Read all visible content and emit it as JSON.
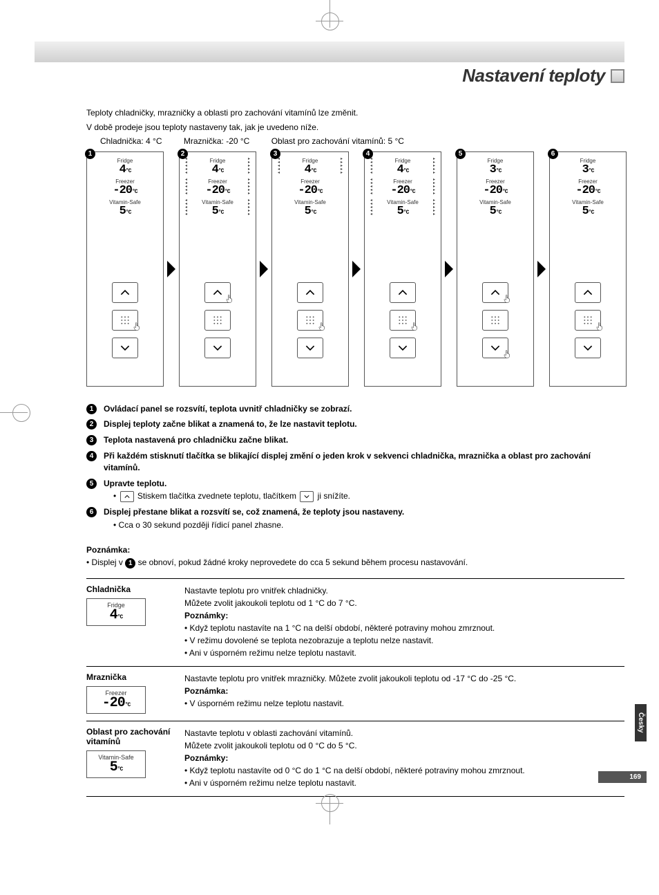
{
  "title": "Nastavení teploty",
  "intro_line1": "Teploty chladničky, mrazničky a oblasti pro zachování vitamínů lze změnit.",
  "intro_line2": "V době prodeje jsou teploty nastaveny tak, jak je uvedeno níže.",
  "defaults": {
    "fridge": "Chladnička: 4 °C",
    "freezer": "Mraznička: -20 °C",
    "vitamin": "Oblast pro zachování vitamínů: 5 °C"
  },
  "panels": [
    {
      "num": "1",
      "fridge": "4",
      "freezer": "-20",
      "vitamin": "5",
      "blinkAll": false,
      "blinkFridge": false,
      "pressUp": false,
      "pressMid": true,
      "pressDown": false
    },
    {
      "num": "2",
      "fridge": "4",
      "freezer": "-20",
      "vitamin": "5",
      "blinkAll": true,
      "blinkFridge": false,
      "pressUp": true,
      "pressMid": false,
      "pressDown": false
    },
    {
      "num": "3",
      "fridge": "4",
      "freezer": "-20",
      "vitamin": "5",
      "blinkAll": false,
      "blinkFridge": true,
      "pressUp": false,
      "pressMid": true,
      "pressDown": false
    },
    {
      "num": "4",
      "fridge": "4",
      "freezer": "-20",
      "vitamin": "5",
      "blinkAll": true,
      "blinkFridge": false,
      "pressUp": false,
      "pressMid": true,
      "pressDown": false
    },
    {
      "num": "5",
      "fridge": "3",
      "freezer": "-20",
      "vitamin": "5",
      "blinkAll": false,
      "blinkFridge": false,
      "pressUp": true,
      "pressMid": false,
      "pressDown": true
    },
    {
      "num": "6",
      "fridge": "3",
      "freezer": "-20",
      "vitamin": "5",
      "blinkAll": false,
      "blinkFridge": false,
      "pressUp": false,
      "pressMid": true,
      "pressDown": false
    }
  ],
  "display_labels": {
    "fridge": "Fridge",
    "freezer": "Freezer",
    "vitamin": "Vitamin-Safe",
    "unit": "°C"
  },
  "steps": [
    {
      "num": "1",
      "text": "Ovládací panel se rozsvítí, teplota uvnitř chladničky se zobrazí."
    },
    {
      "num": "2",
      "text": "Displej teploty začne blikat a znamená to, že lze nastavit teplotu."
    },
    {
      "num": "3",
      "text": "Teplota nastavená pro chladničku začne blikat."
    },
    {
      "num": "4",
      "text": "Při každém stisknutí tlačítka se blikající displej změní o jeden krok v sekvenci chladnička, mraznička a oblast pro zachování vitamínů."
    },
    {
      "num": "5",
      "text": "Upravte teplotu.",
      "sub_before": "Stiskem tlačítka zvednete teplotu, tlačítkem",
      "sub_after": "ji snížíte."
    },
    {
      "num": "6",
      "text": "Displej přestane blikat a rozsvítí se, což znamená, že teploty jsou nastaveny.",
      "sub": "• Cca o 30 sekund později řídicí panel zhasne."
    }
  ],
  "note": {
    "label": "Poznámka:",
    "bullet_prefix": "•  Displej v ",
    "bullet_num": "1",
    "bullet_suffix": " se obnoví, pokud žádné kroky neprovedete do cca 5 sekund během procesu nastavování."
  },
  "settings": [
    {
      "title": "Chladnička",
      "icon_label": "Fridge",
      "icon_value": "4",
      "desc_lines": [
        "Nastavte teplotu pro vnitřek chladničky.",
        "Můžete zvolit jakoukoli teplotu od 1 °C do 7 °C."
      ],
      "notes_label": "Poznámky:",
      "notes": [
        "• Když teplotu nastavíte na 1 °C na delší období, některé potraviny mohou zmrznout.",
        "• V režimu dovolené se teplota nezobrazuje a teplotu nelze nastavit.",
        "• Ani v úsporném režimu nelze teplotu nastavit."
      ]
    },
    {
      "title": "Mraznička",
      "icon_label": "Freezer",
      "icon_value": "-20",
      "desc_lines": [
        "Nastavte teplotu pro vnitřek mrazničky. Můžete zvolit jakoukoli teplotu od -17 °C do -25 °C."
      ],
      "notes_label": "Poznámka:",
      "notes": [
        "• V úsporném režimu nelze teplotu nastavit."
      ]
    },
    {
      "title": "Oblast pro zachování vitamínů",
      "icon_label": "Vitamin-Safe",
      "icon_value": "5",
      "desc_lines": [
        "Nastavte teplotu v oblasti zachování vitamínů.",
        "Můžete zvolit jakoukoli teplotu od 0 °C do 5 °C."
      ],
      "notes_label": "Poznámky:",
      "notes": [
        "• Když teplotu nastavíte od 0 °C  do 1 °C na delší období, některé potraviny mohou zmrznout.",
        "• Ani v úsporném režimu nelze teplotu nastavit."
      ]
    }
  ],
  "side_tab": "Česky",
  "page_number": "169",
  "colors": {
    "title": "#333333",
    "border": "#555555",
    "background": "#ffffff",
    "tab_bg": "#333333",
    "pagenum_bg": "#555555"
  }
}
